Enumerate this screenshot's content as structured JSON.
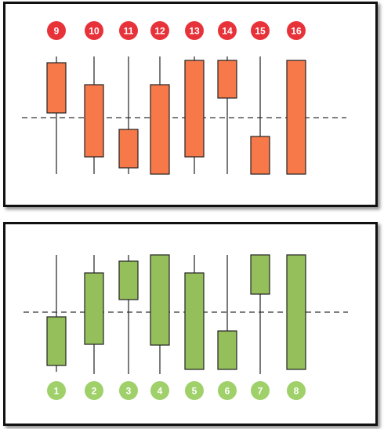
{
  "colors": {
    "bearish_fill": "#f7794a",
    "bullish_fill": "#94bf5b",
    "red_badge": "#e8323a",
    "green_badge": "#9fd06a",
    "outline": "#222222",
    "dashed_line": "#333333"
  },
  "top_panel": {
    "badge_color": "red",
    "candles": [
      {
        "label": "9",
        "wick": [
          72,
          222
        ],
        "body": [
          80,
          144
        ]
      },
      {
        "label": "10",
        "wick": [
          72,
          222
        ],
        "body": [
          108,
          200
        ]
      },
      {
        "label": "11",
        "wick": [
          72,
          222
        ],
        "body": [
          165,
          214
        ]
      },
      {
        "label": "12",
        "wick": [
          72,
          222
        ],
        "body": [
          108,
          222
        ]
      },
      {
        "label": "13",
        "wick": [
          72,
          222
        ],
        "body": [
          77,
          200
        ]
      },
      {
        "label": "14",
        "wick": [
          72,
          222
        ],
        "body": [
          77,
          125
        ]
      },
      {
        "label": "15",
        "wick": [
          72,
          222
        ],
        "body": [
          174,
          222
        ]
      },
      {
        "label": "16",
        "wick": [
          77,
          222
        ],
        "body": [
          77,
          222
        ]
      }
    ],
    "reference_level": 150
  },
  "bottom_panel": {
    "badge_color": "green",
    "candles": [
      {
        "label": "1",
        "wick": [
          325,
          474
        ],
        "body": [
          404,
          466
        ]
      },
      {
        "label": "2",
        "wick": [
          325,
          477
        ],
        "body": [
          348,
          439
        ]
      },
      {
        "label": "3",
        "wick": [
          325,
          477
        ],
        "body": [
          333,
          382
        ]
      },
      {
        "label": "4",
        "wick": [
          325,
          477
        ],
        "body": [
          325,
          440
        ]
      },
      {
        "label": "5",
        "wick": [
          325,
          471
        ],
        "body": [
          348,
          471
        ]
      },
      {
        "label": "6",
        "wick": [
          325,
          471
        ],
        "body": [
          422,
          471
        ]
      },
      {
        "label": "7",
        "wick": [
          325,
          477
        ],
        "body": [
          325,
          375
        ]
      },
      {
        "label": "8",
        "wick": [
          325,
          471
        ],
        "body": [
          325,
          471
        ]
      }
    ],
    "reference_level": 398
  }
}
